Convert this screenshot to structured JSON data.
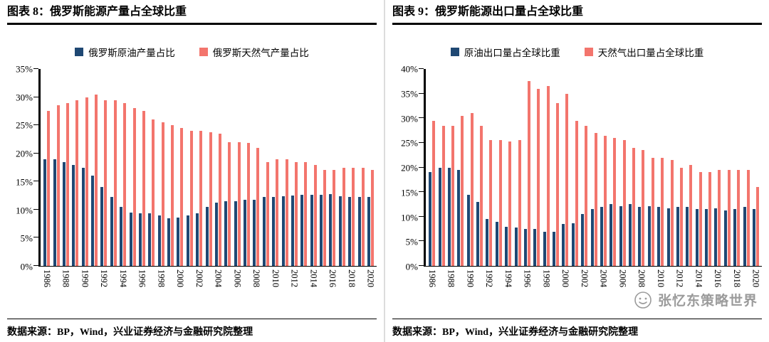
{
  "panels": [
    {
      "title": "图表 8：俄罗斯能源产量占全球比重",
      "source": "数据来源：BP，Wind，兴业证券经济与金融研究院整理"
    },
    {
      "title": "图表 9：俄罗斯能源出口量占全球比重",
      "source": "数据来源：BP，Wind，兴业证券经济与金融研究院整理"
    }
  ],
  "watermark": {
    "text": "张忆东策略世界"
  },
  "colors": {
    "oil_blue": "#1F4873",
    "gas_red": "#F3756D"
  },
  "chart_data": [
    {
      "type": "bar",
      "title": "图表 8：俄罗斯能源产量占全球比重",
      "categories": [
        1986,
        1987,
        1988,
        1989,
        1990,
        1991,
        1992,
        1993,
        1994,
        1995,
        1996,
        1997,
        1998,
        1999,
        2000,
        2001,
        2002,
        2003,
        2004,
        2005,
        2006,
        2007,
        2008,
        2009,
        2010,
        2011,
        2012,
        2013,
        2014,
        2015,
        2016,
        2017,
        2018,
        2019,
        2020
      ],
      "series": [
        {
          "name": "俄罗斯原油产量占比",
          "color": "#1F4873",
          "values": [
            19,
            19,
            18.5,
            18,
            17.5,
            16,
            14,
            12.2,
            10.5,
            9.5,
            9.4,
            9.4,
            9,
            8.5,
            8.6,
            9,
            9.3,
            10.5,
            11.2,
            11.5,
            11.5,
            11.8,
            11.7,
            12.2,
            12.2,
            12.4,
            12.5,
            12.6,
            12.6,
            12.6,
            12.8,
            12.4,
            12.3,
            12.3,
            12.2
          ]
        },
        {
          "name": "俄罗斯天然气产量占比",
          "color": "#F3756D",
          "values": [
            27.5,
            28.5,
            29,
            29.5,
            30,
            30.5,
            29.5,
            29.5,
            29,
            28,
            27.5,
            26,
            25.5,
            25,
            24.5,
            24,
            24,
            23.8,
            23.5,
            22,
            22,
            21.8,
            21,
            18.5,
            19,
            19,
            18.5,
            18.5,
            18,
            17,
            17,
            17.5,
            17.5,
            17.5,
            17
          ]
        }
      ],
      "xlabel": "",
      "ylabel": "",
      "ylim": [
        0,
        35
      ],
      "ytick_step": 5,
      "ytick_suffix": "%",
      "xtick_every": 2,
      "grid": false,
      "legend_position": "top"
    },
    {
      "type": "bar",
      "title": "图表 9：俄罗斯能源出口量占全球比重",
      "categories": [
        1986,
        1987,
        1988,
        1989,
        1990,
        1991,
        1992,
        1993,
        1994,
        1995,
        1996,
        1997,
        1998,
        1999,
        2000,
        2001,
        2002,
        2003,
        2004,
        2005,
        2006,
        2007,
        2008,
        2009,
        2010,
        2011,
        2012,
        2013,
        2014,
        2015,
        2016,
        2017,
        2018,
        2019,
        2020
      ],
      "series": [
        {
          "name": "原油出口量占全球比重",
          "color": "#1F4873",
          "values": [
            19,
            20,
            20,
            19.5,
            14.5,
            13,
            9.5,
            9,
            8,
            7.8,
            7.5,
            7.5,
            7,
            7,
            8.5,
            8.7,
            10.5,
            11.5,
            12,
            12.5,
            12.2,
            12.5,
            12,
            12.2,
            12,
            11.7,
            12,
            12,
            11.5,
            11.5,
            11.7,
            11.2,
            11.5,
            12,
            11.5
          ]
        },
        {
          "name": "天然气出口量占全球比重",
          "color": "#F3756D",
          "values": [
            29.5,
            28.5,
            28.5,
            30.5,
            31,
            28.5,
            25.5,
            25.5,
            25.3,
            25.5,
            37.5,
            36,
            36.5,
            33,
            35,
            29.5,
            28.5,
            27,
            26.5,
            26,
            25.5,
            24,
            23.5,
            22,
            22,
            21.5,
            20,
            20.5,
            19,
            19,
            19.5,
            19.5,
            19.5,
            19.5,
            16
          ]
        }
      ],
      "xlabel": "",
      "ylabel": "",
      "ylim": [
        0,
        40
      ],
      "ytick_step": 5,
      "ytick_suffix": "%",
      "xtick_every": 2,
      "grid": false,
      "legend_position": "top"
    }
  ]
}
